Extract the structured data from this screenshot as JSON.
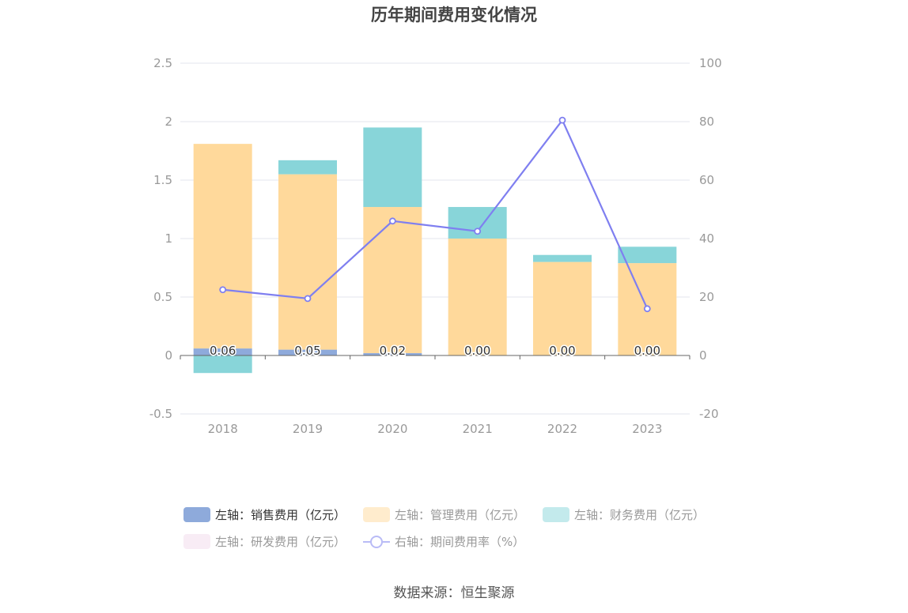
{
  "chart_data": {
    "type": "bar",
    "title": "历年期间费用变化情况",
    "categories": [
      "2018",
      "2019",
      "2020",
      "2021",
      "2022",
      "2023"
    ],
    "stacked": true,
    "left_axis": {
      "ylim": [
        -0.5,
        2.5
      ],
      "ticks": [
        "-0.5",
        "0",
        "0.5",
        "1",
        "1.5",
        "2",
        "2.5"
      ]
    },
    "right_axis": {
      "ylim": [
        -20,
        100
      ],
      "ticks": [
        "-20",
        "0",
        "20",
        "40",
        "60",
        "80",
        "100"
      ]
    },
    "series": [
      {
        "name": "左轴：销售费用（亿元）",
        "axis": "left",
        "type": "bar",
        "color": "#8eaadb",
        "values": [
          0.06,
          0.05,
          0.02,
          0.0,
          0.0,
          0.0
        ],
        "data_labels": [
          "0.06",
          "0.05",
          "0.02",
          "0.00",
          "0.00",
          "0.00"
        ]
      },
      {
        "name": "左轴：管理费用（亿元）",
        "axis": "left",
        "type": "bar",
        "color": "#ffd99b",
        "values": [
          1.75,
          1.5,
          1.25,
          1.0,
          0.8,
          0.79
        ]
      },
      {
        "name": "左轴：财务费用（亿元）",
        "axis": "left",
        "type": "bar",
        "color": "#88d5d9",
        "values": [
          -0.15,
          0.12,
          0.68,
          0.27,
          0.06,
          0.14
        ]
      },
      {
        "name": "左轴：研发费用（亿元）",
        "axis": "left",
        "type": "bar",
        "color": "#f1d9ec",
        "values": [
          0,
          0,
          0,
          0,
          0,
          0
        ]
      },
      {
        "name": "右轴：期间费用率（%）",
        "axis": "right",
        "type": "line",
        "color": "#7f7ff0",
        "values": [
          22.5,
          19.5,
          46.0,
          42.5,
          80.5,
          16.0
        ]
      }
    ],
    "grid": true,
    "legend_position": "bottom"
  },
  "source": "数据来源：恒生聚源"
}
